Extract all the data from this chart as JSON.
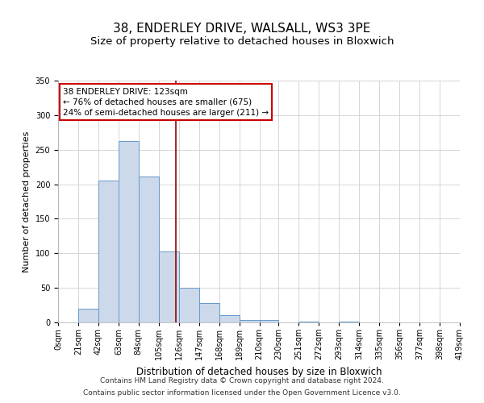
{
  "title": "38, ENDERLEY DRIVE, WALSALL, WS3 3PE",
  "subtitle": "Size of property relative to detached houses in Bloxwich",
  "xlabel": "Distribution of detached houses by size in Bloxwich",
  "ylabel": "Number of detached properties",
  "bin_edges": [
    0,
    21,
    42,
    63,
    84,
    105,
    126,
    147,
    168,
    189,
    210,
    230,
    251,
    272,
    293,
    314,
    335,
    356,
    377,
    398,
    419
  ],
  "bar_heights": [
    0,
    20,
    205,
    263,
    211,
    103,
    50,
    28,
    10,
    3,
    3,
    0,
    1,
    0,
    1,
    0,
    0,
    0,
    0,
    0
  ],
  "bar_facecolor": "#ccd9ea",
  "bar_edgecolor": "#6699cc",
  "grid_color": "#d0d0d0",
  "vline_x": 123,
  "vline_color": "#990000",
  "annotation_text": "38 ENDERLEY DRIVE: 123sqm\n← 76% of detached houses are smaller (675)\n24% of semi-detached houses are larger (211) →",
  "annotation_box_edgecolor": "#cc0000",
  "annotation_box_facecolor": "#ffffff",
  "ylim": [
    0,
    350
  ],
  "yticks": [
    0,
    50,
    100,
    150,
    200,
    250,
    300,
    350
  ],
  "footnote1": "Contains HM Land Registry data © Crown copyright and database right 2024.",
  "footnote2": "Contains public sector information licensed under the Open Government Licence v3.0.",
  "title_fontsize": 11,
  "subtitle_fontsize": 9.5,
  "xlabel_fontsize": 8.5,
  "ylabel_fontsize": 8,
  "tick_label_fontsize": 7,
  "annotation_fontsize": 7.5,
  "footnote_fontsize": 6.5
}
